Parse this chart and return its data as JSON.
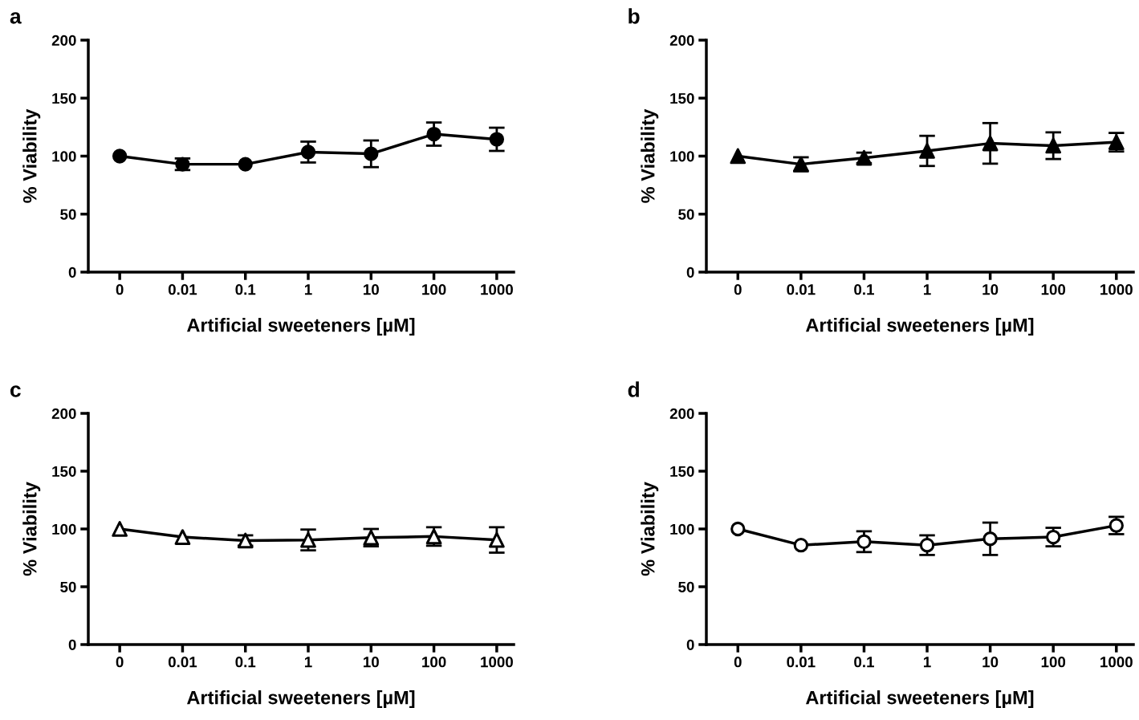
{
  "chart_data": [
    {
      "type": "line",
      "title": "a",
      "xlabel": "Artificial sweeteners [µM]",
      "ylabel": "% Viability",
      "categories": [
        "0",
        "0.01",
        "0.1",
        "1",
        "10",
        "100",
        "1000"
      ],
      "ylim": [
        0,
        200
      ],
      "yticks": [
        0,
        50,
        100,
        150,
        200
      ],
      "marker": "circle",
      "grid": false,
      "series": [
        {
          "color": "#000000",
          "values": [
            100,
            93,
            93,
            103.5,
            102,
            119,
            114.5
          ],
          "errors": [
            null,
            5,
            null,
            9,
            11.5,
            10,
            10
          ]
        }
      ]
    },
    {
      "type": "line",
      "title": "b",
      "xlabel": "Artificial sweeteners [µM]",
      "ylabel": "% Viability",
      "categories": [
        "0",
        "0.01",
        "0.1",
        "1",
        "10",
        "100",
        "1000"
      ],
      "ylim": [
        0,
        200
      ],
      "yticks": [
        0,
        50,
        100,
        150,
        200
      ],
      "marker": "triangle",
      "grid": false,
      "series": [
        {
          "color": "#000000",
          "values": [
            100,
            93,
            98.5,
            104.5,
            111,
            109,
            112
          ],
          "errors": [
            null,
            6,
            4.5,
            13,
            17.5,
            11.5,
            8
          ]
        }
      ]
    },
    {
      "type": "line",
      "title": "c",
      "xlabel": "Artificial sweeteners [µM]",
      "ylabel": "% Viability",
      "categories": [
        "0",
        "0.01",
        "0.1",
        "1",
        "10",
        "100",
        "1000"
      ],
      "ylim": [
        0,
        200
      ],
      "yticks": [
        0,
        50,
        100,
        150,
        200
      ],
      "marker": "triangle",
      "grid": false,
      "series": [
        {
          "color": "#000000",
          "colors": [
            "#ffffff",
            "#ffffff",
            "#ffffff",
            "#ffffff",
            "#ffffff",
            "#ffffff",
            "#ffffff"
          ],
          "values": [
            100,
            93,
            90,
            90.5,
            92.5,
            93.5,
            90.5
          ],
          "errors": [
            null,
            null,
            4.5,
            9,
            7.5,
            8,
            11
          ]
        }
      ]
    },
    {
      "type": "line",
      "title": "d",
      "xlabel": "Artificial sweeteners [µM]",
      "ylabel": "% Viability",
      "categories": [
        "0",
        "0.01",
        "0.1",
        "1",
        "10",
        "100",
        "1000"
      ],
      "ylim": [
        0,
        200
      ],
      "yticks": [
        0,
        50,
        100,
        150,
        200
      ],
      "marker": "circle",
      "grid": false,
      "series": [
        {
          "color": "#000000",
          "colors": [
            "#ffffff",
            "#ffffff",
            "#ffffff",
            "#ffffff",
            "#ffffff",
            "#ffffff",
            "#ffffff"
          ],
          "values": [
            100,
            86,
            89,
            86,
            91.5,
            93,
            103
          ],
          "errors": [
            null,
            null,
            9,
            8.5,
            14,
            8,
            7.5
          ]
        }
      ]
    }
  ]
}
